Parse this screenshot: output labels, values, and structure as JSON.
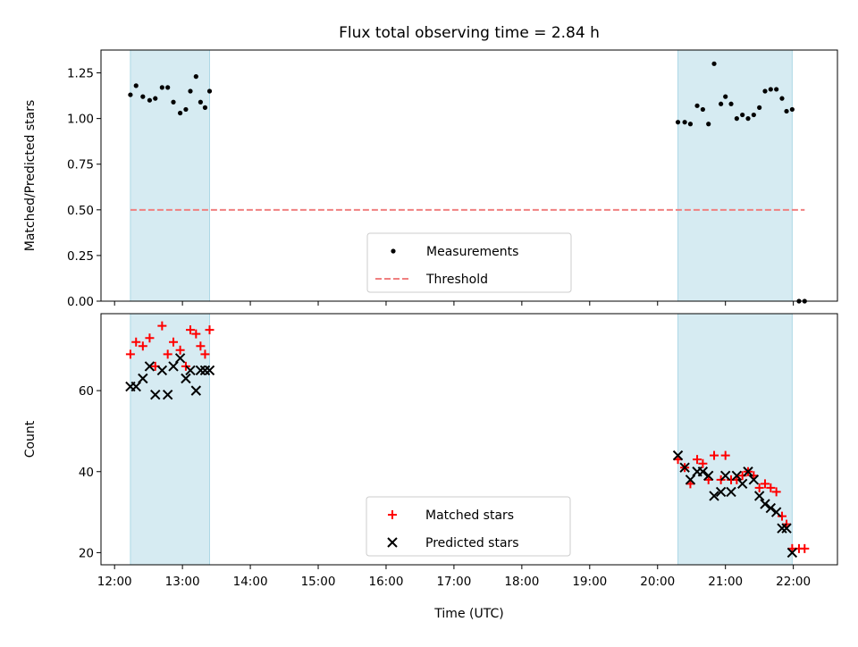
{
  "title": "Flux total observing time = 2.84 h",
  "xlabel": "Time (UTC)",
  "chart_data": [
    {
      "type": "scatter",
      "ylabel": "Matched/Predicted stars",
      "xlim": [
        "11:48",
        "22:39"
      ],
      "ylim": [
        0,
        1.375
      ],
      "yticks": [
        0.0,
        0.25,
        0.5,
        0.75,
        1.0,
        1.25
      ],
      "ytick_labels": [
        "0.00",
        "0.25",
        "0.50",
        "0.75",
        "1.00",
        "1.25"
      ],
      "observing_windows": [
        [
          "12:14",
          "13:24"
        ],
        [
          "20:18",
          "21:59"
        ]
      ],
      "series": [
        {
          "name": "Measurements",
          "marker": "dot",
          "color": "#000000",
          "points": [
            [
              "12:14",
              1.13
            ],
            [
              "12:19",
              1.18
            ],
            [
              "12:25",
              1.12
            ],
            [
              "12:31",
              1.1
            ],
            [
              "12:36",
              1.11
            ],
            [
              "12:42",
              1.17
            ],
            [
              "12:47",
              1.17
            ],
            [
              "12:52",
              1.09
            ],
            [
              "12:58",
              1.03
            ],
            [
              "13:03",
              1.05
            ],
            [
              "13:07",
              1.15
            ],
            [
              "13:12",
              1.23
            ],
            [
              "13:16",
              1.09
            ],
            [
              "13:20",
              1.06
            ],
            [
              "13:24",
              1.15
            ],
            [
              "20:18",
              0.98
            ],
            [
              "20:24",
              0.98
            ],
            [
              "20:29",
              0.97
            ],
            [
              "20:35",
              1.07
            ],
            [
              "20:40",
              1.05
            ],
            [
              "20:45",
              0.97
            ],
            [
              "20:50",
              1.3
            ],
            [
              "20:56",
              1.08
            ],
            [
              "21:00",
              1.12
            ],
            [
              "21:05",
              1.08
            ],
            [
              "21:10",
              1.0
            ],
            [
              "21:15",
              1.02
            ],
            [
              "21:20",
              1.0
            ],
            [
              "21:25",
              1.02
            ],
            [
              "21:30",
              1.06
            ],
            [
              "21:35",
              1.15
            ],
            [
              "21:40",
              1.16
            ],
            [
              "21:45",
              1.16
            ],
            [
              "21:50",
              1.11
            ],
            [
              "21:54",
              1.04
            ],
            [
              "21:59",
              1.05
            ],
            [
              "22:05",
              0.0
            ],
            [
              "22:10",
              0.0
            ]
          ]
        },
        {
          "name": "Threshold",
          "marker": "dashed-line",
          "color": "#f08080",
          "points": [
            [
              "12:14",
              0.5
            ],
            [
              "22:10",
              0.5
            ]
          ]
        }
      ],
      "legend": "bottom-center"
    },
    {
      "type": "scatter",
      "ylabel": "Count",
      "xlim": [
        "11:48",
        "22:39"
      ],
      "ylim": [
        17,
        79
      ],
      "yticks": [
        20,
        40,
        60
      ],
      "ytick_labels": [
        "20",
        "40",
        "60"
      ],
      "observing_windows": [
        [
          "12:14",
          "13:24"
        ],
        [
          "20:18",
          "21:59"
        ]
      ],
      "series": [
        {
          "name": "Matched stars",
          "marker": "plus",
          "color": "#ff0000",
          "points": [
            [
              "12:14",
              69
            ],
            [
              "12:19",
              72
            ],
            [
              "12:25",
              71
            ],
            [
              "12:31",
              73
            ],
            [
              "12:36",
              66
            ],
            [
              "12:42",
              76
            ],
            [
              "12:47",
              69
            ],
            [
              "12:52",
              72
            ],
            [
              "12:58",
              70
            ],
            [
              "13:03",
              66
            ],
            [
              "13:07",
              75
            ],
            [
              "13:12",
              74
            ],
            [
              "13:16",
              71
            ],
            [
              "13:20",
              69
            ],
            [
              "13:24",
              75
            ],
            [
              "20:18",
              43
            ],
            [
              "20:24",
              41
            ],
            [
              "20:29",
              37
            ],
            [
              "20:35",
              43
            ],
            [
              "20:40",
              42
            ],
            [
              "20:45",
              38
            ],
            [
              "20:50",
              44
            ],
            [
              "20:56",
              38
            ],
            [
              "21:00",
              44
            ],
            [
              "21:05",
              38
            ],
            [
              "21:10",
              38
            ],
            [
              "21:15",
              39
            ],
            [
              "21:20",
              40
            ],
            [
              "21:25",
              39
            ],
            [
              "21:30",
              36
            ],
            [
              "21:35",
              37
            ],
            [
              "21:40",
              36
            ],
            [
              "21:45",
              35
            ],
            [
              "21:50",
              29
            ],
            [
              "21:54",
              27
            ],
            [
              "21:59",
              21
            ],
            [
              "22:05",
              21
            ],
            [
              "22:10",
              21
            ]
          ]
        },
        {
          "name": "Predicted stars",
          "marker": "x",
          "color": "#000000",
          "points": [
            [
              "12:14",
              61
            ],
            [
              "12:19",
              61
            ],
            [
              "12:25",
              63
            ],
            [
              "12:31",
              66
            ],
            [
              "12:36",
              59
            ],
            [
              "12:42",
              65
            ],
            [
              "12:47",
              59
            ],
            [
              "12:52",
              66
            ],
            [
              "12:58",
              68
            ],
            [
              "13:03",
              63
            ],
            [
              "13:07",
              65
            ],
            [
              "13:12",
              60
            ],
            [
              "13:16",
              65
            ],
            [
              "13:20",
              65
            ],
            [
              "13:24",
              65
            ],
            [
              "20:18",
              44
            ],
            [
              "20:24",
              41
            ],
            [
              "20:29",
              38
            ],
            [
              "20:35",
              40
            ],
            [
              "20:40",
              40
            ],
            [
              "20:45",
              39
            ],
            [
              "20:50",
              34
            ],
            [
              "20:56",
              35
            ],
            [
              "21:00",
              39
            ],
            [
              "21:05",
              35
            ],
            [
              "21:10",
              39
            ],
            [
              "21:15",
              37
            ],
            [
              "21:20",
              40
            ],
            [
              "21:25",
              38
            ],
            [
              "21:30",
              34
            ],
            [
              "21:35",
              32
            ],
            [
              "21:40",
              31
            ],
            [
              "21:45",
              30
            ],
            [
              "21:50",
              26
            ],
            [
              "21:54",
              26
            ],
            [
              "21:59",
              20
            ]
          ]
        }
      ],
      "legend": "bottom-center"
    }
  ],
  "x_ticks": [
    "12:00",
    "13:00",
    "14:00",
    "15:00",
    "16:00",
    "17:00",
    "18:00",
    "19:00",
    "20:00",
    "21:00",
    "22:00"
  ],
  "colors": {
    "window_fill": "#add8e6",
    "axes": "#000000"
  }
}
